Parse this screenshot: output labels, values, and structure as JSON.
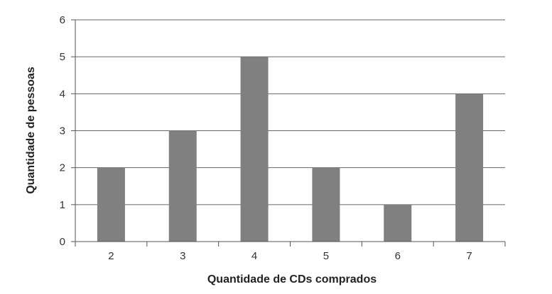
{
  "chart_data": {
    "type": "bar",
    "title": "",
    "xlabel": "Quantidade de CDs comprados",
    "ylabel": "Quantidade de pessoas",
    "categories": [
      "2",
      "3",
      "4",
      "5",
      "6",
      "7"
    ],
    "values": [
      2,
      3,
      5,
      2,
      1,
      4
    ],
    "ylim": [
      0,
      6
    ],
    "yticks": [
      "0",
      "1",
      "2",
      "3",
      "4",
      "5",
      "6"
    ],
    "grid": true,
    "bar_color": "#808080",
    "grid_color": "#666666",
    "axis_color": "#555555"
  }
}
